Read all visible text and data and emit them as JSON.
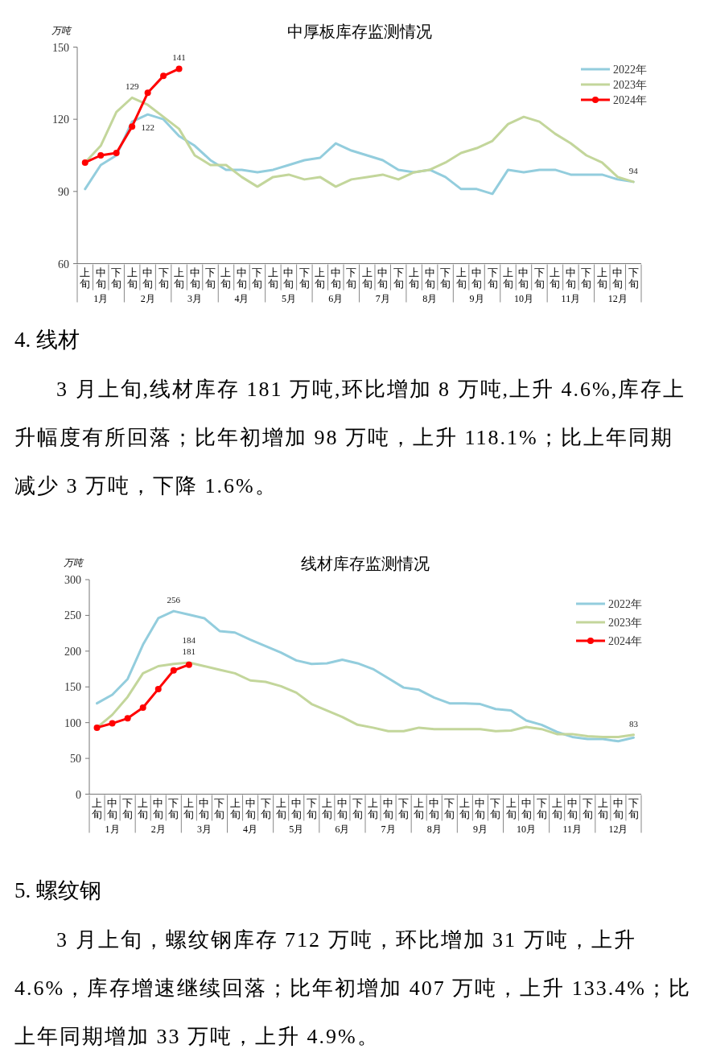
{
  "chart_data": [
    {
      "type": "line",
      "title": "中厚板库存监测情况",
      "ylabel": "万吨",
      "ylim": [
        60,
        150
      ],
      "yticks": [
        60,
        90,
        120,
        150
      ],
      "grid": false,
      "legend": "top right",
      "categories": [
        "上旬",
        "中旬",
        "下旬",
        "上旬",
        "中旬",
        "下旬",
        "上旬",
        "中旬",
        "下旬",
        "上旬",
        "中旬",
        "下旬",
        "上旬",
        "中旬",
        "下旬",
        "上旬",
        "中旬",
        "下旬",
        "上旬",
        "中旬",
        "下旬",
        "上旬",
        "中旬",
        "下旬",
        "上旬",
        "中旬",
        "下旬",
        "上旬",
        "中旬",
        "下旬",
        "上旬",
        "中旬",
        "下旬",
        "上旬",
        "中旬",
        "下旬"
      ],
      "series": [
        {
          "name": "2022年",
          "color": "#93cddd",
          "values": [
            91,
            101,
            105,
            119,
            122,
            120,
            113,
            109,
            103,
            99,
            99,
            98,
            99,
            101,
            103,
            104,
            110,
            107,
            105,
            103,
            99,
            98,
            99,
            96,
            91,
            91,
            89,
            99,
            98,
            99,
            99,
            97,
            97,
            97,
            95,
            94
          ],
          "value_labels": [
            null,
            null,
            null,
            null,
            "122",
            null,
            null,
            null,
            null,
            null,
            null,
            null,
            null,
            null,
            null,
            null,
            null,
            null,
            null,
            null,
            null,
            null,
            null,
            null,
            null,
            null,
            null,
            null,
            null,
            null,
            null,
            null,
            null,
            null,
            null,
            null
          ]
        },
        {
          "name": "2023年",
          "color": "#c3d69b",
          "values": [
            102,
            109,
            123,
            129,
            126,
            121,
            116,
            105,
            101,
            101,
            96,
            92,
            96,
            97,
            95,
            96,
            92,
            95,
            96,
            97,
            95,
            98,
            99,
            102,
            106,
            108,
            111,
            118,
            121,
            119,
            114,
            110,
            105,
            102,
            96,
            94
          ],
          "value_labels": [
            null,
            null,
            null,
            "129",
            null,
            null,
            null,
            null,
            null,
            null,
            null,
            null,
            null,
            null,
            null,
            null,
            null,
            null,
            null,
            null,
            null,
            null,
            null,
            null,
            null,
            null,
            null,
            null,
            null,
            null,
            null,
            null,
            null,
            null,
            null,
            "94"
          ]
        },
        {
          "name": "2024年",
          "color": "#ff0000",
          "marker": "circle",
          "values": [
            102,
            105,
            106,
            117,
            131,
            138,
            141,
            null,
            null,
            null,
            null,
            null,
            null,
            null,
            null,
            null,
            null,
            null,
            null,
            null,
            null,
            null,
            null,
            null,
            null,
            null,
            null,
            null,
            null,
            null,
            null,
            null,
            null,
            null,
            null,
            null
          ],
          "value_labels": [
            null,
            null,
            null,
            null,
            null,
            null,
            "141",
            null,
            null,
            null,
            null,
            null,
            null,
            null,
            null,
            null,
            null,
            null,
            null,
            null,
            null,
            null,
            null,
            null,
            null,
            null,
            null,
            null,
            null,
            null,
            null,
            null,
            null,
            null,
            null,
            null
          ]
        }
      ],
      "annotations": [
        "1月",
        "2月",
        "3月",
        "4月",
        "5月",
        "6月",
        "7月",
        "8月",
        "9月",
        "10月",
        "11月",
        "12月",
        "4. 线材",
        "3 月上旬,线材库存 181 万吨,环比增加 8 万吨,上升 4.6%,库存上升幅度有所回落；比年初增加 98 万吨，上升 118.1%；比上年同期减少 3 万吨，下降 1.6%。"
      ]
    },
    {
      "type": "line",
      "title": "线材库存监测情况",
      "ylabel": "万吨",
      "ylim": [
        0,
        300
      ],
      "yticks": [
        0,
        50,
        100,
        150,
        200,
        250,
        300
      ],
      "grid": false,
      "legend": "top right",
      "categories": [
        "上旬",
        "中旬",
        "下旬",
        "上旬",
        "中旬",
        "下旬",
        "上旬",
        "中旬",
        "下旬",
        "上旬",
        "中旬",
        "下旬",
        "上旬",
        "中旬",
        "下旬",
        "上旬",
        "中旬",
        "下旬",
        "上旬",
        "中旬",
        "下旬",
        "上旬",
        "中旬",
        "下旬",
        "上旬",
        "中旬",
        "下旬",
        "上旬",
        "中旬",
        "下旬",
        "上旬",
        "中旬",
        "下旬",
        "上旬",
        "中旬",
        "下旬"
      ],
      "series": [
        {
          "name": "2022年",
          "color": "#93cddd",
          "values": [
            127,
            139,
            161,
            209,
            246,
            256,
            251,
            246,
            228,
            226,
            216,
            207,
            198,
            187,
            182,
            183,
            188,
            183,
            175,
            162,
            149,
            146,
            135,
            127,
            127,
            126,
            119,
            117,
            103,
            97,
            87,
            80,
            77,
            77,
            74,
            79
          ],
          "value_labels": [
            null,
            null,
            null,
            null,
            null,
            "256",
            null,
            null,
            null,
            null,
            null,
            null,
            null,
            null,
            null,
            null,
            null,
            null,
            null,
            null,
            null,
            null,
            null,
            null,
            null,
            null,
            null,
            null,
            null,
            null,
            null,
            null,
            null,
            null,
            null,
            null
          ]
        },
        {
          "name": "2023年",
          "color": "#c3d69b",
          "values": [
            93,
            111,
            136,
            169,
            179,
            182,
            184,
            179,
            174,
            169,
            159,
            157,
            151,
            142,
            126,
            117,
            108,
            97,
            93,
            88,
            88,
            93,
            91,
            91,
            91,
            91,
            88,
            89,
            94,
            91,
            84,
            84,
            81,
            80,
            80,
            83
          ],
          "value_labels": [
            null,
            null,
            null,
            null,
            null,
            null,
            "184",
            null,
            null,
            null,
            null,
            null,
            null,
            null,
            null,
            null,
            null,
            null,
            null,
            null,
            null,
            null,
            null,
            null,
            null,
            null,
            null,
            null,
            null,
            null,
            null,
            null,
            null,
            null,
            null,
            "83"
          ]
        },
        {
          "name": "2024年",
          "color": "#ff0000",
          "marker": "circle",
          "values": [
            93,
            99,
            106,
            121,
            147,
            173,
            181,
            null,
            null,
            null,
            null,
            null,
            null,
            null,
            null,
            null,
            null,
            null,
            null,
            null,
            null,
            null,
            null,
            null,
            null,
            null,
            null,
            null,
            null,
            null,
            null,
            null,
            null,
            null,
            null,
            null
          ],
          "value_labels": [
            null,
            null,
            null,
            null,
            null,
            null,
            "181",
            null,
            null,
            null,
            null,
            null,
            null,
            null,
            null,
            null,
            null,
            null,
            null,
            null,
            null,
            null,
            null,
            null,
            null,
            null,
            null,
            null,
            null,
            null,
            null,
            null,
            null,
            null,
            null,
            null
          ]
        }
      ],
      "annotations": [
        "1月",
        "2月",
        "3月",
        "4月",
        "5月",
        "6月",
        "7月",
        "8月",
        "9月",
        "10月",
        "11月",
        "12月",
        "5. 螺纹钢",
        "3 月上旬，螺纹钢库存 712 万吨，环比增加 31 万吨，上升 4.6%，库存增速继续回落；比年初增加 407 万吨，上升 133.4%；比上年同期增加 33 万吨，上升 4.9%。"
      ]
    }
  ]
}
